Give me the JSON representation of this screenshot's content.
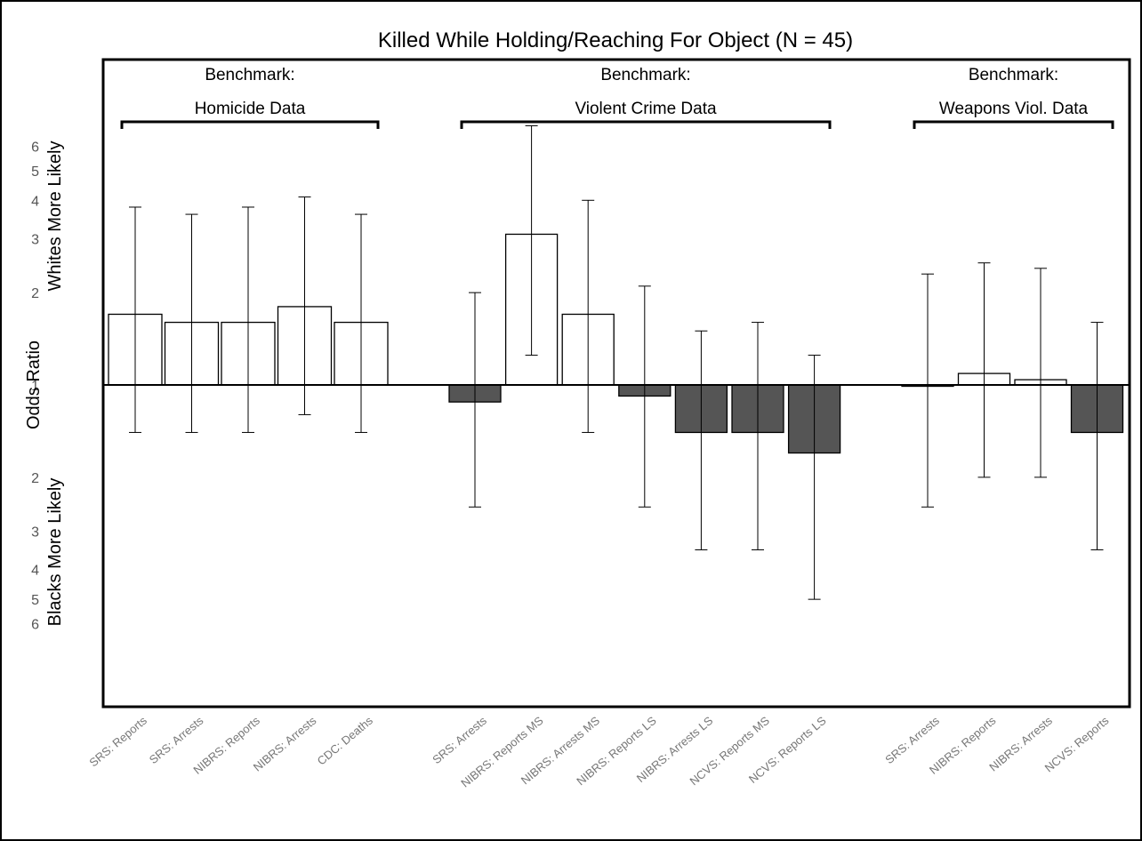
{
  "chart_data": {
    "type": "bar",
    "title": "Killed While Holding/Reaching For Object (N = 45)",
    "ylabel": "Odds Ratio",
    "y_upper_label": "Whites More Likely",
    "y_lower_label": "Blacks More Likely",
    "y_scale": "log",
    "baseline": 1,
    "upper_ticks": [
      "2",
      "3",
      "4",
      "5",
      "6"
    ],
    "lower_ticks": [
      "2",
      "3",
      "4",
      "5",
      "6"
    ],
    "baseline_tick": "1",
    "grid": false,
    "legend": "none",
    "colors": {
      "whites_more_likely": "#ffffff",
      "blacks_more_likely": "#555555",
      "stroke": "#000000"
    },
    "groups": [
      {
        "label_line1": "Benchmark:",
        "label_line2": "Homicide Data",
        "bars": [
          {
            "label": "SRS: Reports",
            "or": 1.7,
            "lo": 0.7,
            "hi": 3.8
          },
          {
            "label": "SRS: Arrests",
            "or": 1.6,
            "lo": 0.7,
            "hi": 3.6
          },
          {
            "label": "NIBRS: Reports",
            "or": 1.6,
            "lo": 0.7,
            "hi": 3.8
          },
          {
            "label": "NIBRS: Arrests",
            "or": 1.8,
            "lo": 0.8,
            "hi": 4.1
          },
          {
            "label": "CDC: Deaths",
            "or": 1.6,
            "lo": 0.7,
            "hi": 3.6
          }
        ]
      },
      {
        "label_line1": "Benchmark:",
        "label_line2": "Violent Crime Data",
        "bars": [
          {
            "label": "SRS: Arrests",
            "or": 0.88,
            "lo": 0.4,
            "hi": 2.0
          },
          {
            "label": "NIBRS: Reports MS",
            "or": 3.1,
            "lo": 1.25,
            "hi": 7.0
          },
          {
            "label": "NIBRS: Arrests MS",
            "or": 1.7,
            "lo": 0.7,
            "hi": 4.0
          },
          {
            "label": "NIBRS: Reports LS",
            "or": 0.92,
            "lo": 0.4,
            "hi": 2.1
          },
          {
            "label": "NIBRS: Arrests LS",
            "or": 0.7,
            "lo": 0.29,
            "hi": 1.5
          },
          {
            "label": "NCVS: Reports MS",
            "or": 0.7,
            "lo": 0.29,
            "hi": 1.6
          },
          {
            "label": "NCVS: Reports LS",
            "or": 0.6,
            "lo": 0.2,
            "hi": 1.25
          }
        ]
      },
      {
        "label_line1": "Benchmark:",
        "label_line2": "Weapons Viol. Data",
        "bars": [
          {
            "label": "SRS: Arrests",
            "or": 0.99,
            "lo": 0.4,
            "hi": 2.3
          },
          {
            "label": "NIBRS: Reports",
            "or": 1.09,
            "lo": 0.5,
            "hi": 2.5
          },
          {
            "label": "NIBRS: Arrests",
            "or": 1.04,
            "lo": 0.5,
            "hi": 2.4
          },
          {
            "label": "NCVS: Reports",
            "or": 0.7,
            "lo": 0.29,
            "hi": 1.6
          }
        ]
      }
    ]
  }
}
